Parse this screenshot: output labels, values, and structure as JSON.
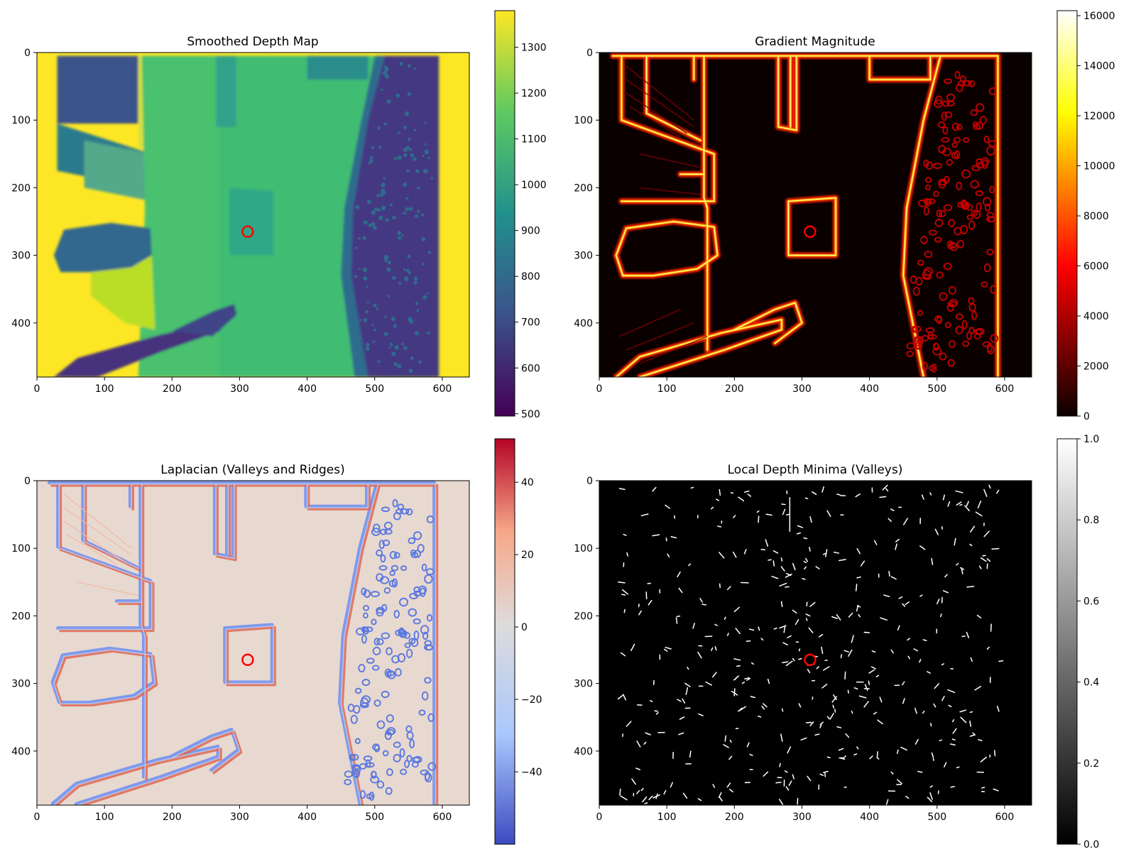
{
  "chart_data": [
    {
      "type": "heatmap",
      "title": "Smoothed Depth Map",
      "colormap": "viridis",
      "xlim": [
        0,
        640
      ],
      "ylim": [
        480,
        0
      ],
      "xticks": [
        "0",
        "100",
        "200",
        "300",
        "400",
        "500",
        "600"
      ],
      "yticks": [
        "0",
        "100",
        "200",
        "300",
        "400"
      ],
      "colorbar": {
        "range": [
          495,
          1380
        ],
        "ticks": [
          "500",
          "600",
          "700",
          "800",
          "900",
          "1000",
          "1100",
          "1200",
          "1300"
        ],
        "colors": [
          "#440154",
          "#3b528b",
          "#21918c",
          "#5ec962",
          "#fde725"
        ]
      },
      "marker": {
        "x": 312,
        "y": 265,
        "color": "#ff0000"
      }
    },
    {
      "type": "heatmap",
      "title": "Gradient Magnitude",
      "colormap": "hot",
      "xlim": [
        0,
        640
      ],
      "ylim": [
        480,
        0
      ],
      "xticks": [
        "0",
        "100",
        "200",
        "300",
        "400",
        "500",
        "600"
      ],
      "yticks": [
        "0",
        "100",
        "200",
        "300",
        "400"
      ],
      "colorbar": {
        "range": [
          0,
          16200
        ],
        "ticks": [
          "0",
          "2000",
          "4000",
          "6000",
          "8000",
          "10000",
          "12000",
          "14000",
          "16000"
        ],
        "colors": [
          "#0b0000",
          "#ff0000",
          "#ffff00",
          "#ffffff"
        ]
      },
      "marker": {
        "x": 312,
        "y": 265,
        "color": "#ff0000"
      }
    },
    {
      "type": "heatmap",
      "title": "Laplacian (Valleys and Ridges)",
      "colormap": "coolwarm",
      "xlim": [
        0,
        640
      ],
      "ylim": [
        480,
        0
      ],
      "xticks": [
        "0",
        "100",
        "200",
        "300",
        "400",
        "500",
        "600"
      ],
      "yticks": [
        "0",
        "100",
        "200",
        "300",
        "400"
      ],
      "colorbar": {
        "range": [
          -60,
          52
        ],
        "ticks": [
          "40",
          "20",
          "0",
          "−20",
          "−40"
        ],
        "tick_values": [
          40,
          20,
          0,
          -20,
          -40
        ],
        "colors": [
          "#3b4cc0",
          "#aac7fd",
          "#dddcdc",
          "#f7a889",
          "#b40426"
        ]
      },
      "marker": {
        "x": 312,
        "y": 265,
        "color": "#ff0000"
      }
    },
    {
      "type": "heatmap",
      "title": "Local Depth Minima (Valleys)",
      "colormap": "gray",
      "xlim": [
        0,
        640
      ],
      "ylim": [
        480,
        0
      ],
      "xticks": [
        "0",
        "100",
        "200",
        "300",
        "400",
        "500",
        "600"
      ],
      "yticks": [
        "0",
        "100",
        "200",
        "300",
        "400"
      ],
      "colorbar": {
        "range": [
          0,
          1
        ],
        "ticks": [
          "0.0",
          "0.2",
          "0.4",
          "0.6",
          "0.8",
          "1.0"
        ],
        "colors": [
          "#000000",
          "#ffffff"
        ]
      },
      "marker": {
        "x": 312,
        "y": 265,
        "color": "#ff0000"
      }
    }
  ]
}
